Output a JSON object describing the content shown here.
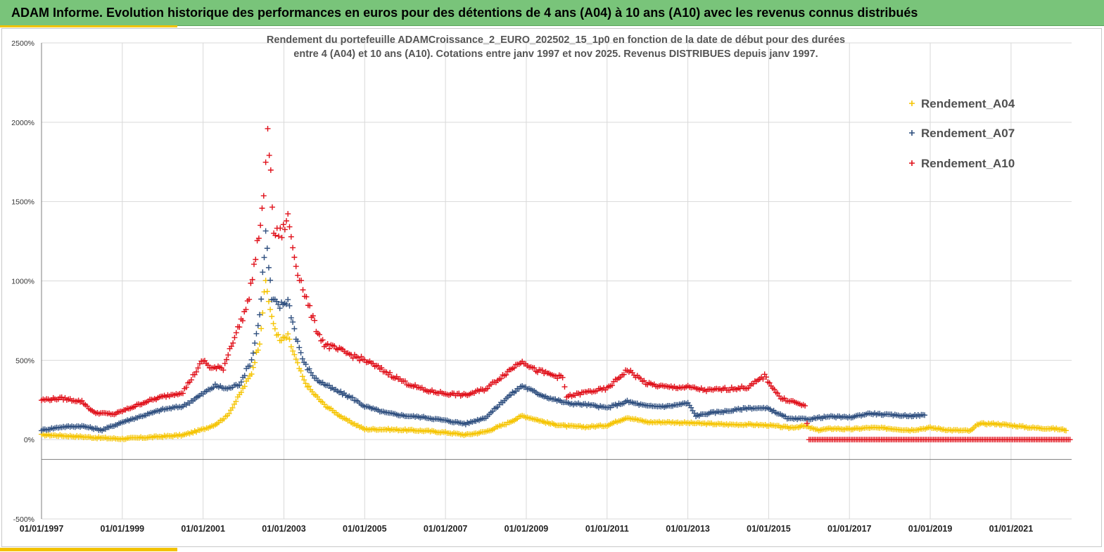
{
  "header": {
    "title": "ADAM Informe. Evolution historique des performances en euros pour des détentions de 4 ans (A04) à 10 ans (A10) avec les revenus connus distribués"
  },
  "colors": {
    "header_bg": "#79c47a",
    "accent": "#f2c200",
    "A04": "#f5c400",
    "A07": "#2f4f7f",
    "A10": "#e0101a"
  },
  "chart_data": {
    "type": "scatter",
    "title": [
      "Rendement du portefeuille ADAMCroissance_2_EURO_202502_15_1p0  en fonction de la date de début pour des durées",
      "entre 4 (A04) et 10 ans (A10). Cotations entre janv 1997 et nov 2025. Revenus DISTRIBUES depuis janv 1997."
    ],
    "xlabel": "",
    "ylabel": "",
    "x_range": [
      1997.0,
      2022.5
    ],
    "ylim": [
      -500,
      2500
    ],
    "y_ticks": [
      -500,
      0,
      500,
      1000,
      1500,
      2000,
      2500
    ],
    "y_tick_labels": [
      "-500%",
      "0%",
      "500%",
      "1000%",
      "1500%",
      "2000%",
      "2500%"
    ],
    "x_ticks": [
      1997,
      1999,
      2001,
      2003,
      2005,
      2007,
      2009,
      2011,
      2013,
      2015,
      2017,
      2019,
      2021
    ],
    "x_tick_labels": [
      "01/01/1997",
      "01/01/1999",
      "01/01/2001",
      "01/01/2003",
      "01/01/2005",
      "01/01/2007",
      "01/01/2009",
      "01/01/2011",
      "01/01/2013",
      "01/01/2015",
      "01/01/2017",
      "01/01/2019",
      "01/01/2021"
    ],
    "legend": {
      "position": "top-right",
      "entries": [
        "Rendement_A04",
        "Rendement_A07",
        "Rendement_A10"
      ]
    },
    "series": [
      {
        "name": "Rendement_A04",
        "points": [
          [
            1997.0,
            30
          ],
          [
            1997.5,
            25
          ],
          [
            1998.0,
            18
          ],
          [
            1998.5,
            10
          ],
          [
            1999.0,
            5
          ],
          [
            1999.5,
            12
          ],
          [
            2000.0,
            20
          ],
          [
            2000.5,
            28
          ],
          [
            2001.0,
            65
          ],
          [
            2001.3,
            95
          ],
          [
            2001.6,
            150
          ],
          [
            2001.9,
            280
          ],
          [
            2002.2,
            420
          ],
          [
            2002.4,
            620
          ],
          [
            2002.55,
            1000
          ],
          [
            2002.7,
            760
          ],
          [
            2002.9,
            620
          ],
          [
            2003.1,
            650
          ],
          [
            2003.3,
            500
          ],
          [
            2003.5,
            370
          ],
          [
            2003.7,
            300
          ],
          [
            2004.0,
            220
          ],
          [
            2004.5,
            130
          ],
          [
            2005.0,
            65
          ],
          [
            2005.5,
            65
          ],
          [
            2006.0,
            60
          ],
          [
            2006.5,
            55
          ],
          [
            2007.0,
            45
          ],
          [
            2007.5,
            30
          ],
          [
            2008.0,
            50
          ],
          [
            2008.5,
            100
          ],
          [
            2008.9,
            150
          ],
          [
            2009.2,
            130
          ],
          [
            2009.6,
            100
          ],
          [
            2010.0,
            85
          ],
          [
            2010.5,
            80
          ],
          [
            2011.0,
            90
          ],
          [
            2011.5,
            140
          ],
          [
            2012.0,
            110
          ],
          [
            2012.5,
            110
          ],
          [
            2013.0,
            105
          ],
          [
            2013.5,
            100
          ],
          [
            2014.0,
            95
          ],
          [
            2014.5,
            95
          ],
          [
            2015.0,
            90
          ],
          [
            2015.5,
            75
          ],
          [
            2015.9,
            85
          ],
          [
            2016.2,
            60
          ],
          [
            2016.6,
            70
          ],
          [
            2017.0,
            65
          ],
          [
            2017.5,
            75
          ],
          [
            2018.0,
            70
          ],
          [
            2018.5,
            60
          ],
          [
            2019.0,
            75
          ],
          [
            2019.5,
            60
          ],
          [
            2020.0,
            55
          ],
          [
            2020.2,
            100
          ],
          [
            2020.6,
            100
          ],
          [
            2021.0,
            90
          ],
          [
            2021.5,
            75
          ],
          [
            2022.0,
            70
          ],
          [
            2022.4,
            60
          ]
        ]
      },
      {
        "name": "Rendement_A07",
        "points": [
          [
            1997.0,
            60
          ],
          [
            1997.5,
            80
          ],
          [
            1998.0,
            85
          ],
          [
            1998.5,
            60
          ],
          [
            1999.0,
            110
          ],
          [
            1999.5,
            150
          ],
          [
            2000.0,
            190
          ],
          [
            2000.5,
            210
          ],
          [
            2001.0,
            290
          ],
          [
            2001.3,
            340
          ],
          [
            2001.6,
            320
          ],
          [
            2001.9,
            350
          ],
          [
            2002.2,
            500
          ],
          [
            2002.4,
            780
          ],
          [
            2002.55,
            1300
          ],
          [
            2002.7,
            880
          ],
          [
            2002.9,
            840
          ],
          [
            2003.1,
            880
          ],
          [
            2003.3,
            650
          ],
          [
            2003.5,
            480
          ],
          [
            2003.8,
            380
          ],
          [
            2004.2,
            320
          ],
          [
            2004.7,
            260
          ],
          [
            2005.0,
            210
          ],
          [
            2005.5,
            170
          ],
          [
            2006.0,
            150
          ],
          [
            2006.5,
            140
          ],
          [
            2007.0,
            120
          ],
          [
            2007.5,
            100
          ],
          [
            2008.0,
            140
          ],
          [
            2008.5,
            260
          ],
          [
            2008.9,
            340
          ],
          [
            2009.2,
            300
          ],
          [
            2009.6,
            260
          ],
          [
            2010.0,
            230
          ],
          [
            2010.5,
            220
          ],
          [
            2011.0,
            200
          ],
          [
            2011.5,
            240
          ],
          [
            2012.0,
            210
          ],
          [
            2012.5,
            210
          ],
          [
            2013.0,
            230
          ],
          [
            2013.2,
            150
          ],
          [
            2013.6,
            170
          ],
          [
            2014.0,
            180
          ],
          [
            2014.5,
            200
          ],
          [
            2015.0,
            195
          ],
          [
            2015.5,
            130
          ],
          [
            2016.0,
            130
          ],
          [
            2016.5,
            145
          ],
          [
            2017.0,
            140
          ],
          [
            2017.5,
            165
          ],
          [
            2018.0,
            155
          ],
          [
            2018.5,
            150
          ],
          [
            2018.9,
            155
          ]
        ]
      },
      {
        "name": "Rendement_A10",
        "points": [
          [
            1997.0,
            250
          ],
          [
            1997.5,
            260
          ],
          [
            1998.0,
            240
          ],
          [
            1998.3,
            170
          ],
          [
            1998.8,
            160
          ],
          [
            1999.2,
            200
          ],
          [
            1999.6,
            240
          ],
          [
            2000.0,
            270
          ],
          [
            2000.5,
            300
          ],
          [
            2001.0,
            500
          ],
          [
            2001.2,
            450
          ],
          [
            2001.5,
            450
          ],
          [
            2001.7,
            600
          ],
          [
            2001.9,
            720
          ],
          [
            2002.1,
            850
          ],
          [
            2002.3,
            1150
          ],
          [
            2002.5,
            1500
          ],
          [
            2002.6,
            2000
          ],
          [
            2002.75,
            1300
          ],
          [
            2002.95,
            1300
          ],
          [
            2003.1,
            1400
          ],
          [
            2003.3,
            1100
          ],
          [
            2003.6,
            850
          ],
          [
            2003.8,
            700
          ],
          [
            2004.0,
            600
          ],
          [
            2004.5,
            550
          ],
          [
            2005.0,
            500
          ],
          [
            2005.5,
            430
          ],
          [
            2006.0,
            360
          ],
          [
            2006.5,
            310
          ],
          [
            2007.0,
            290
          ],
          [
            2007.5,
            280
          ],
          [
            2008.0,
            320
          ],
          [
            2008.5,
            420
          ],
          [
            2008.9,
            500
          ],
          [
            2009.2,
            440
          ],
          [
            2009.6,
            410
          ],
          [
            2009.9,
            390
          ],
          [
            2010.0,
            270
          ],
          [
            2010.5,
            300
          ],
          [
            2011.0,
            320
          ],
          [
            2011.5,
            440
          ],
          [
            2012.0,
            350
          ],
          [
            2012.5,
            330
          ],
          [
            2013.0,
            330
          ],
          [
            2013.5,
            310
          ],
          [
            2014.0,
            320
          ],
          [
            2014.5,
            330
          ],
          [
            2014.9,
            400
          ],
          [
            2015.3,
            260
          ],
          [
            2015.6,
            240
          ],
          [
            2015.9,
            210
          ],
          [
            2016.0,
            0
          ],
          [
            2017.0,
            0
          ],
          [
            2018.0,
            0
          ],
          [
            2019.0,
            0
          ],
          [
            2020.0,
            0
          ],
          [
            2021.0,
            0
          ],
          [
            2022.0,
            0
          ],
          [
            2022.5,
            0
          ]
        ]
      }
    ]
  }
}
